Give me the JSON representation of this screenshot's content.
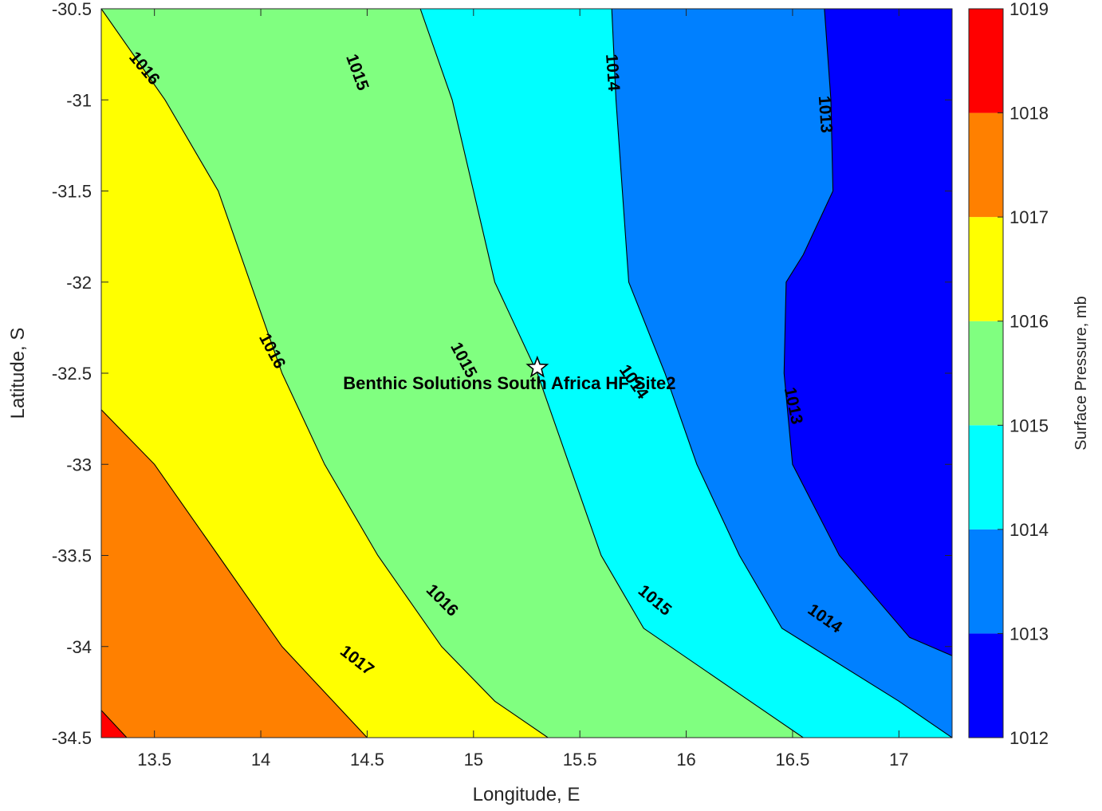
{
  "chart_data": {
    "type": "contour",
    "title": "",
    "xlabel": "Longitude, E",
    "ylabel": "Latitude, S",
    "xlim": [
      13.25,
      17.25
    ],
    "ylim": [
      -34.5,
      -30.5
    ],
    "xticks": [
      13.5,
      14,
      14.5,
      15,
      15.5,
      16,
      16.5,
      17
    ],
    "yticks": [
      -30.5,
      -31,
      -31.5,
      -32,
      -32.5,
      -33,
      -33.5,
      -34,
      -34.5
    ],
    "levels": [
      1012,
      1013,
      1014,
      1015,
      1016,
      1017,
      1018,
      1019
    ],
    "level_colors": [
      "#0000ff",
      "#0080ff",
      "#00ffff",
      "#80ff80",
      "#ffff00",
      "#ff8000",
      "#ff0000",
      "#800000"
    ],
    "contours": [
      {
        "level": 1013,
        "line": [
          [
            16.65,
            -30.5
          ],
          [
            16.68,
            -31.0
          ],
          [
            16.69,
            -31.5
          ],
          [
            16.55,
            -31.85
          ],
          [
            16.47,
            -32.0
          ],
          [
            16.46,
            -32.5
          ],
          [
            16.5,
            -33.0
          ],
          [
            16.72,
            -33.5
          ],
          [
            17.05,
            -33.95
          ],
          [
            17.25,
            -34.05
          ]
        ]
      },
      {
        "level": 1014,
        "line": [
          [
            15.65,
            -30.5
          ],
          [
            15.67,
            -31.0
          ],
          [
            15.7,
            -31.5
          ],
          [
            15.73,
            -32.0
          ],
          [
            15.9,
            -32.5
          ],
          [
            16.05,
            -33.0
          ],
          [
            16.25,
            -33.5
          ],
          [
            16.45,
            -33.9
          ],
          [
            17.0,
            -34.3
          ],
          [
            17.25,
            -34.5
          ]
        ]
      },
      {
        "level": 1015,
        "line": [
          [
            14.75,
            -30.5
          ],
          [
            14.9,
            -31.0
          ],
          [
            15.0,
            -31.5
          ],
          [
            15.1,
            -32.0
          ],
          [
            15.3,
            -32.5
          ],
          [
            15.45,
            -33.0
          ],
          [
            15.6,
            -33.5
          ],
          [
            15.8,
            -33.9
          ],
          [
            16.3,
            -34.3
          ],
          [
            16.55,
            -34.5
          ]
        ]
      },
      {
        "level": 1016,
        "line": [
          [
            13.25,
            -30.5
          ],
          [
            13.55,
            -31.0
          ],
          [
            13.8,
            -31.5
          ],
          [
            13.95,
            -32.0
          ],
          [
            14.1,
            -32.5
          ],
          [
            14.3,
            -33.0
          ],
          [
            14.55,
            -33.5
          ],
          [
            14.85,
            -34.0
          ],
          [
            15.1,
            -34.3
          ],
          [
            15.35,
            -34.5
          ]
        ]
      },
      {
        "level": 1017,
        "line": [
          [
            13.25,
            -32.7
          ],
          [
            13.5,
            -33.0
          ],
          [
            13.8,
            -33.5
          ],
          [
            14.1,
            -34.0
          ],
          [
            14.5,
            -34.5
          ]
        ]
      },
      {
        "level": 1018,
        "line": [
          [
            13.25,
            -34.35
          ],
          [
            13.37,
            -34.5
          ]
        ]
      }
    ],
    "contour_labels": [
      {
        "text": "1016",
        "x": 13.45,
        "y": -30.83,
        "angle": 50
      },
      {
        "text": "1015",
        "x": 14.45,
        "y": -30.85,
        "angle": 70
      },
      {
        "text": "1014",
        "x": 15.65,
        "y": -30.85,
        "angle": 86
      },
      {
        "text": "1013",
        "x": 16.65,
        "y": -31.08,
        "angle": 86
      },
      {
        "text": "1016",
        "x": 14.05,
        "y": -32.38,
        "angle": 62
      },
      {
        "text": "1015",
        "x": 14.95,
        "y": -32.43,
        "angle": 62
      },
      {
        "text": "1014",
        "x": 15.75,
        "y": -32.55,
        "angle": 55
      },
      {
        "text": "1013",
        "x": 16.5,
        "y": -32.68,
        "angle": 78
      },
      {
        "text": "1016",
        "x": 14.85,
        "y": -33.75,
        "angle": 45
      },
      {
        "text": "1015",
        "x": 15.85,
        "y": -33.75,
        "angle": 40
      },
      {
        "text": "1014",
        "x": 16.65,
        "y": -33.85,
        "angle": 35
      },
      {
        "text": "1017",
        "x": 14.45,
        "y": -34.08,
        "angle": 38
      }
    ],
    "site": {
      "label": "Benthic Solutions South Africa HF Site2",
      "x": 15.3,
      "y": -32.47
    },
    "colorbar": {
      "label": "Surface Pressure, mb",
      "ticks": [
        1012,
        1013,
        1014,
        1015,
        1016,
        1017,
        1018,
        1019
      ]
    }
  }
}
